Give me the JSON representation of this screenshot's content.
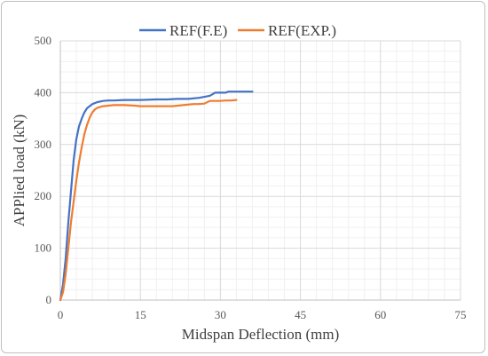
{
  "chart_data": {
    "type": "line",
    "title": "",
    "xlabel": "Midspan Deflection (mm)",
    "ylabel": "APPlied load (kN)",
    "xlim": [
      0,
      75
    ],
    "ylim": [
      0,
      500
    ],
    "x_ticks": [
      0,
      15,
      30,
      45,
      60,
      75
    ],
    "y_ticks": [
      0,
      100,
      200,
      300,
      400,
      500
    ],
    "grid": true,
    "legend_position": "top",
    "series": [
      {
        "name": "REF(F.E)",
        "color": "#4472c4",
        "x": [
          0,
          0.5,
          1,
          1.5,
          2,
          2.5,
          3,
          3.5,
          4,
          4.5,
          5,
          6,
          7,
          8,
          9,
          10,
          12,
          15,
          18,
          20,
          22,
          24,
          26,
          27,
          28,
          28.5,
          29,
          30,
          31,
          31.5,
          32,
          33,
          34,
          35,
          36
        ],
        "y": [
          0,
          30,
          80,
          150,
          210,
          270,
          310,
          335,
          350,
          362,
          370,
          378,
          382,
          384,
          385,
          385,
          386,
          386,
          387,
          387,
          388,
          388,
          390,
          392,
          394,
          397,
          400,
          400,
          400,
          402,
          402,
          402,
          402,
          402,
          402
        ]
      },
      {
        "name": "REF(EXP.)",
        "color": "#ed7d31",
        "x": [
          0,
          0.5,
          1,
          1.5,
          2,
          2.5,
          3,
          3.5,
          4,
          4.5,
          5,
          5.5,
          6,
          6.5,
          7,
          8,
          9,
          10,
          12,
          14,
          15,
          17,
          19,
          21,
          23,
          25,
          26,
          27,
          28,
          29,
          30,
          31,
          32,
          33
        ],
        "y": [
          0,
          15,
          50,
          100,
          150,
          190,
          230,
          265,
          295,
          320,
          338,
          352,
          362,
          368,
          371,
          374,
          375,
          376,
          376,
          375,
          374,
          374,
          374,
          374,
          376,
          378,
          378,
          379,
          384,
          384,
          384,
          385,
          385,
          386
        ]
      }
    ]
  }
}
